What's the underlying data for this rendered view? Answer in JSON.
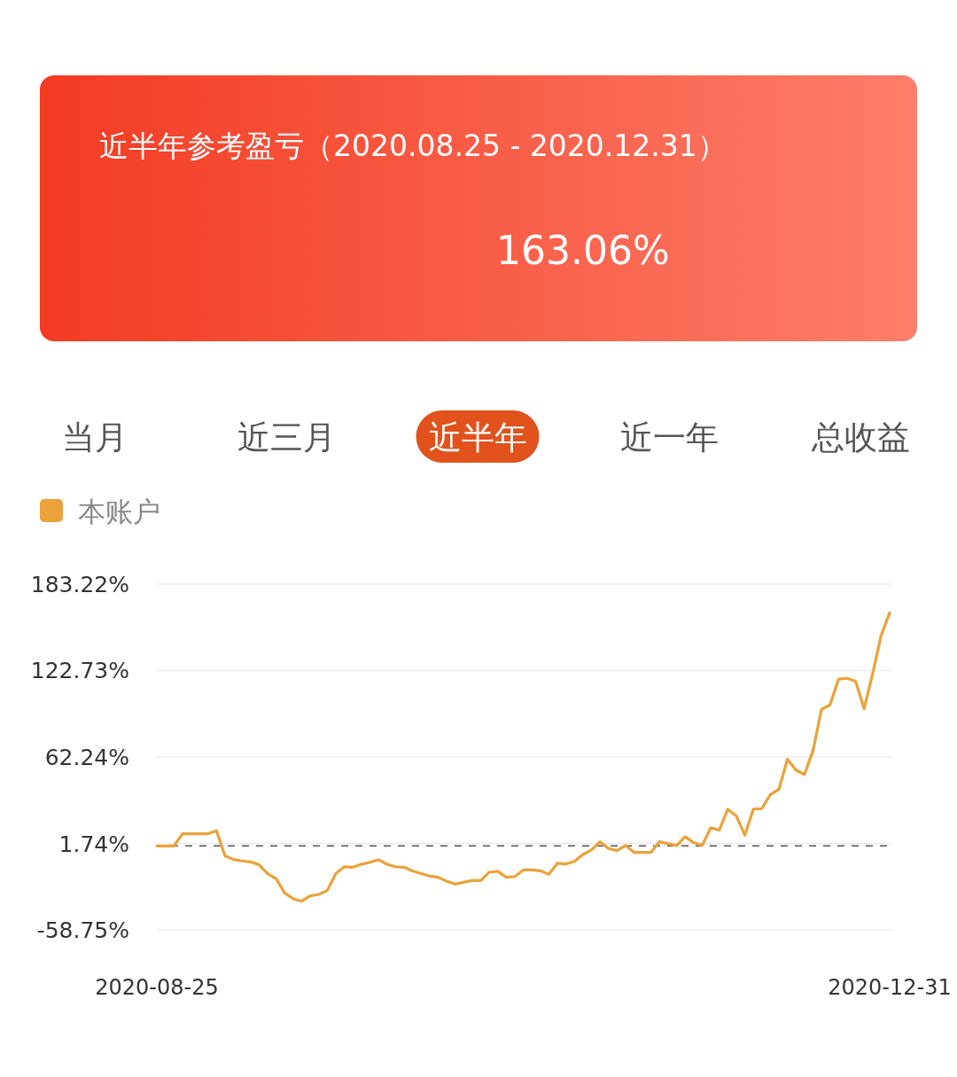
{
  "chart_data": {
    "type": "line",
    "title": "近半年参考盈亏（2020.08.25 - 2020.12.31）",
    "subtitle": "163.06%",
    "annotations": [
      "当月",
      "近三月",
      "近半年",
      "近一年",
      "总收益"
    ],
    "categories": [
      "2020-08-25",
      null,
      null,
      null,
      null,
      null,
      null,
      null,
      null,
      null,
      null,
      null,
      null,
      null,
      null,
      null,
      null,
      null,
      null,
      null,
      null,
      null,
      null,
      null,
      null,
      null,
      null,
      null,
      null,
      null,
      null,
      null,
      null,
      null,
      null,
      null,
      null,
      null,
      null,
      null,
      null,
      null,
      null,
      null,
      null,
      null,
      null,
      null,
      null,
      null,
      null,
      null,
      null,
      null,
      null,
      null,
      null,
      null,
      null,
      null,
      null,
      null,
      null,
      null,
      null,
      null,
      null,
      null,
      null,
      null,
      null,
      null,
      null,
      null,
      null,
      null,
      null,
      null,
      null,
      null,
      null,
      null,
      null,
      null,
      null,
      null,
      "2020-12-31"
    ],
    "series": [
      {
        "name": "本账户",
        "color": "#eba23a",
        "values": [
          0,
          0,
          0,
          8.5,
          8.5,
          8.5,
          8.5,
          10.6,
          -7.0,
          -9.5,
          -10.5,
          -11.2,
          -13.2,
          -19.4,
          -23.0,
          -32.9,
          -37.0,
          -38.7,
          -35.0,
          -33.9,
          -31.2,
          -19.4,
          -14.6,
          -14.9,
          -12.8,
          -11.5,
          -9.7,
          -12.8,
          -14.6,
          -14.9,
          -17.5,
          -19.4,
          -21.1,
          -21.9,
          -24.7,
          -26.7,
          -25.5,
          -24.2,
          -24.2,
          -18.4,
          -17.7,
          -21.9,
          -21.5,
          -16.8,
          -16.8,
          -17.4,
          -19.9,
          -12.2,
          -12.6,
          -10.8,
          -6.0,
          -2.8,
          2.9,
          -1.8,
          -3.3,
          0.3,
          -4.5,
          -4.5,
          -4.5,
          3.0,
          1.5,
          0.3,
          6.5,
          2.3,
          0.3,
          12.7,
          11.0,
          25.7,
          21.0,
          7.5,
          25.7,
          26.1,
          35.9,
          39.6,
          60.7,
          53.1,
          50.0,
          66.5,
          95.6,
          98.7,
          116.7,
          117.3,
          115.3,
          96.0,
          120.4,
          147.3,
          163.1
        ]
      }
    ],
    "ylim": [
      -58.75,
      183.22
    ],
    "yticks": [
      {
        "value": 183.22,
        "label": "183.22%"
      },
      {
        "value": 122.73,
        "label": "122.73%"
      },
      {
        "value": 62.24,
        "label": "62.24%"
      },
      {
        "value": 1.74,
        "label": "1.74%"
      },
      {
        "value": -58.75,
        "label": "-58.75%"
      }
    ],
    "ref_lines": [
      {
        "axis": "y",
        "value": 0,
        "color": "#555555",
        "line_style": "dashed"
      }
    ],
    "grid": "y",
    "legend": "top left"
  }
}
